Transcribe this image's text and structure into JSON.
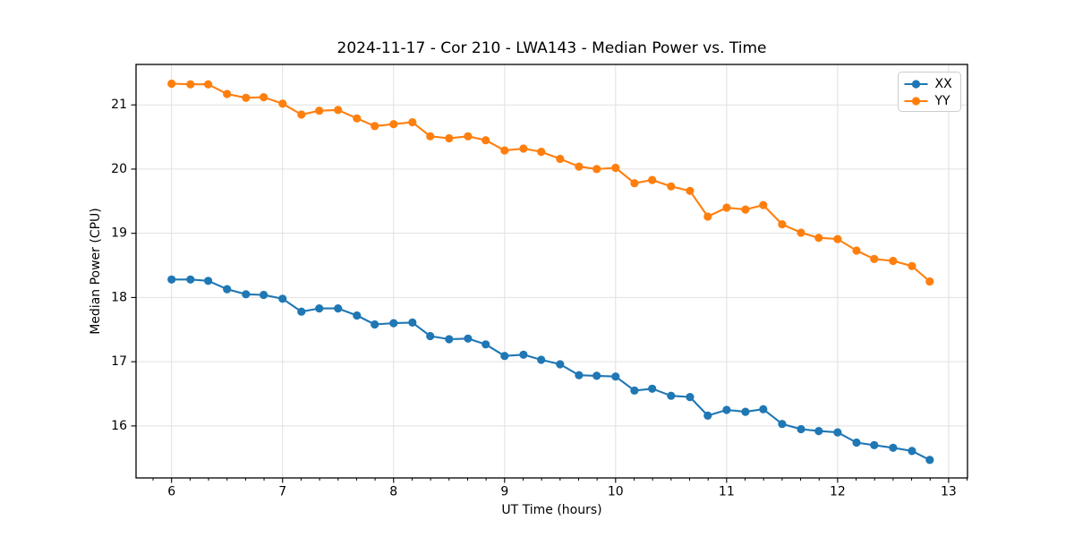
{
  "chart_data": {
    "type": "line",
    "title": "2024-11-17 - Cor 210 - LWA143 - Median Power vs. Time",
    "xlabel": "UT Time (hours)",
    "ylabel": "Median Power (CPU)",
    "x": [
      6.0,
      6.17,
      6.33,
      6.5,
      6.67,
      6.83,
      7.0,
      7.17,
      7.33,
      7.5,
      7.67,
      7.83,
      8.0,
      8.17,
      8.33,
      8.5,
      8.67,
      8.83,
      9.0,
      9.17,
      9.33,
      9.5,
      9.67,
      9.83,
      10.0,
      10.17,
      10.33,
      10.5,
      10.67,
      10.83,
      11.0,
      11.17,
      11.33,
      11.5,
      11.67,
      11.83,
      12.0,
      12.17,
      12.33,
      12.5,
      12.67,
      12.83
    ],
    "series": [
      {
        "name": "XX",
        "color": "#1f77b4",
        "values": [
          18.28,
          18.28,
          18.26,
          18.13,
          18.05,
          18.04,
          17.98,
          17.78,
          17.83,
          17.83,
          17.72,
          17.58,
          17.6,
          17.61,
          17.4,
          17.35,
          17.36,
          17.27,
          17.09,
          17.11,
          17.03,
          16.96,
          16.79,
          16.78,
          16.77,
          16.55,
          16.58,
          16.47,
          16.45,
          16.16,
          16.25,
          16.22,
          16.26,
          16.03,
          15.95,
          15.92,
          15.9,
          15.74,
          15.7,
          15.66,
          15.61,
          15.47
        ]
      },
      {
        "name": "YY",
        "color": "#ff7f0e",
        "values": [
          21.33,
          21.32,
          21.32,
          21.17,
          21.11,
          21.12,
          21.02,
          20.85,
          20.91,
          20.92,
          20.79,
          20.67,
          20.7,
          20.73,
          20.51,
          20.48,
          20.51,
          20.45,
          20.29,
          20.32,
          20.27,
          20.16,
          20.04,
          20.0,
          20.02,
          19.78,
          19.83,
          19.73,
          19.66,
          19.26,
          19.4,
          19.37,
          19.44,
          19.14,
          19.01,
          18.93,
          18.91,
          18.73,
          18.6,
          18.57,
          18.49,
          18.25
        ]
      }
    ],
    "xlim": [
      5.68,
      13.17
    ],
    "ylim": [
      15.19,
      21.63
    ],
    "xticks": [
      6,
      7,
      8,
      9,
      10,
      11,
      12,
      13
    ],
    "yticks": [
      16,
      17,
      18,
      19,
      20,
      21
    ],
    "x_minor_step": 0.166667,
    "grid": true,
    "grid_color": "#e0e0e0",
    "axis_color": "#000000",
    "legend_position": "upper-right",
    "legend_labels": [
      "XX",
      "YY"
    ]
  }
}
